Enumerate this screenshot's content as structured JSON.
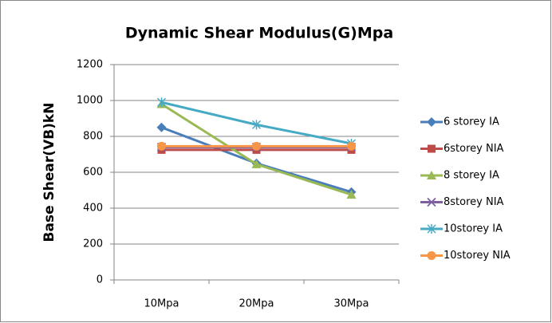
{
  "chart_data": {
    "type": "line",
    "title": "Dynamic Shear Modulus(G)Mpa",
    "y_label": "Base Shear(VB)kN",
    "categories": [
      "10Mpa",
      "20Mpa",
      "30Mpa"
    ],
    "series": [
      {
        "name": "6 storey IA",
        "color": "#4a7ebb",
        "marker": "diamond",
        "values": [
          850,
          650,
          490
        ]
      },
      {
        "name": "6storey NIA",
        "color": "#be4b48",
        "marker": "square",
        "values": [
          725,
          725,
          725
        ]
      },
      {
        "name": "8 storey IA",
        "color": "#98b954",
        "marker": "triangle",
        "values": [
          980,
          645,
          475
        ]
      },
      {
        "name": "8storey NIA",
        "color": "#7d60a0",
        "marker": "x",
        "values": [
          740,
          740,
          740
        ]
      },
      {
        "name": "10storey IA",
        "color": "#46aac5",
        "marker": "star",
        "values": [
          990,
          865,
          760
        ]
      },
      {
        "name": "10storey NIA",
        "color": "#f79646",
        "marker": "circle",
        "values": [
          745,
          745,
          745
        ]
      }
    ],
    "ylim": [
      0,
      1200
    ],
    "yticks": [
      0,
      200,
      400,
      600,
      800,
      1000,
      1200
    ],
    "grid": true,
    "legend": "right"
  }
}
